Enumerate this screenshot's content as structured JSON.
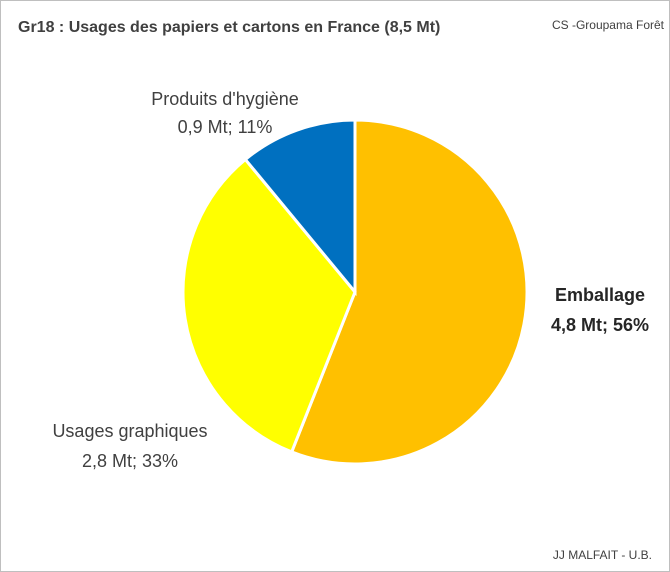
{
  "chart_data": {
    "type": "pie",
    "title": "Gr18 : Usages des papiers et cartons en  France (8,5 Mt)",
    "source": "CS -Groupama Forêt",
    "credit": "JJ MALFAIT - U.B.",
    "categories": [
      "Emballage",
      "Usages graphiques",
      "Produits d'hygiène"
    ],
    "values": [
      56,
      33,
      11
    ],
    "value_labels": [
      "4,8 Mt; 56%",
      "2,8 Mt; 33%",
      "0,9 Mt; 11%"
    ],
    "colors": [
      "#ffc000",
      "#ffff00",
      "#0070c0"
    ]
  }
}
